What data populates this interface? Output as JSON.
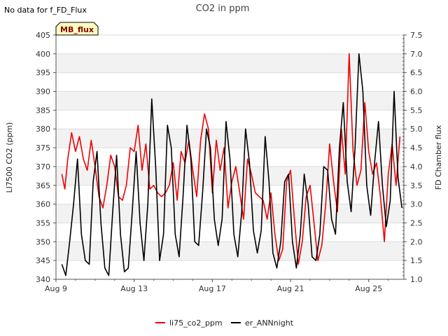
{
  "chart_data": {
    "type": "line",
    "title": "CO2 in ppm",
    "note": "No data for f_FD_Flux",
    "badge": "MB_flux",
    "xlabel": "",
    "ylabel": "LI7500 CO2 (ppm)",
    "y2label": "FD Chamber flux",
    "xlim": [
      9,
      26.8
    ],
    "ylim": [
      340,
      405
    ],
    "y2lim": [
      1.0,
      7.5
    ],
    "x_tick_values": [
      9,
      13,
      17,
      21,
      25
    ],
    "x_tick_labels": [
      "Aug 9",
      "Aug 13",
      "Aug 17",
      "Aug 21",
      "Aug 25"
    ],
    "y_ticks": [
      340,
      345,
      350,
      355,
      360,
      365,
      370,
      375,
      380,
      385,
      390,
      395,
      400,
      405
    ],
    "y2_ticks": [
      "1.0",
      "1.5",
      "2.0",
      "2.5",
      "3.0",
      "3.5",
      "4.0",
      "4.5",
      "5.0",
      "5.5",
      "6.0",
      "6.5",
      "7.0",
      "7.5"
    ],
    "legend": [
      {
        "name": "li75_co2_ppm",
        "color": "#ee0000"
      },
      {
        "name": "er_ANNnight",
        "color": "#000000"
      }
    ],
    "series": [
      {
        "name": "li75_co2_ppm",
        "color": "#ee0000",
        "x": [
          9.3,
          9.45,
          9.6,
          9.8,
          10.0,
          10.2,
          10.4,
          10.6,
          10.8,
          11.0,
          11.2,
          11.4,
          11.6,
          11.8,
          12.0,
          12.2,
          12.4,
          12.6,
          12.8,
          13.0,
          13.2,
          13.4,
          13.6,
          13.8,
          14.0,
          14.2,
          14.4,
          14.6,
          14.8,
          15.0,
          15.2,
          15.4,
          15.6,
          15.8,
          16.0,
          16.2,
          16.4,
          16.6,
          16.8,
          17.0,
          17.2,
          17.4,
          17.6,
          17.8,
          18.0,
          18.2,
          18.4,
          18.6,
          18.8,
          19.0,
          19.2,
          19.4,
          19.6,
          19.8,
          20.0,
          20.2,
          20.4,
          20.6,
          20.8,
          21.0,
          21.2,
          21.4,
          21.6,
          21.8,
          22.0,
          22.2,
          22.4,
          22.6,
          22.8,
          23.0,
          23.2,
          23.4,
          23.6,
          23.8,
          24.0,
          24.2,
          24.4,
          24.6,
          24.8,
          25.0,
          25.2,
          25.4,
          25.6,
          25.8,
          26.0,
          26.2,
          26.4,
          26.6
        ],
        "values": [
          368,
          364,
          372,
          379,
          374,
          378,
          372,
          369,
          377,
          370,
          362,
          359,
          365,
          373,
          370,
          362,
          361,
          365,
          375,
          374,
          381,
          369,
          376,
          364,
          365,
          363,
          362,
          363,
          365,
          371,
          361,
          374,
          371,
          377,
          369,
          362,
          377,
          384,
          380,
          363,
          377,
          369,
          375,
          359,
          366,
          370,
          363,
          356,
          372,
          368,
          363,
          362,
          361,
          356,
          363,
          352,
          345,
          348,
          366,
          369,
          356,
          344,
          350,
          362,
          365,
          355,
          345,
          349,
          360,
          376,
          366,
          358,
          380,
          368,
          400,
          374,
          365,
          369,
          387,
          374,
          368,
          371,
          362,
          350,
          368,
          376,
          365,
          378
        ]
      },
      {
        "name": "er_ANNnight",
        "color": "#000000",
        "x": [
          9.3,
          9.5,
          9.7,
          9.9,
          10.1,
          10.3,
          10.5,
          10.7,
          10.9,
          11.1,
          11.3,
          11.5,
          11.7,
          11.9,
          12.1,
          12.3,
          12.5,
          12.7,
          12.9,
          13.1,
          13.3,
          13.5,
          13.7,
          13.9,
          14.1,
          14.3,
          14.5,
          14.7,
          14.9,
          15.1,
          15.3,
          15.5,
          15.7,
          15.9,
          16.1,
          16.3,
          16.5,
          16.7,
          16.9,
          17.1,
          17.3,
          17.5,
          17.7,
          17.9,
          18.1,
          18.3,
          18.5,
          18.7,
          18.9,
          19.1,
          19.3,
          19.5,
          19.7,
          19.9,
          20.1,
          20.3,
          20.5,
          20.7,
          20.9,
          21.1,
          21.3,
          21.5,
          21.7,
          21.9,
          22.1,
          22.3,
          22.5,
          22.7,
          22.9,
          23.1,
          23.3,
          23.5,
          23.7,
          23.9,
          24.1,
          24.3,
          24.5,
          24.7,
          24.9,
          25.1,
          25.3,
          25.5,
          25.7,
          25.9,
          26.1,
          26.3,
          26.5,
          26.7
        ],
        "values": [
          344,
          341,
          350,
          360,
          372,
          352,
          345,
          344,
          366,
          374,
          355,
          343,
          341,
          358,
          373,
          352,
          342,
          343,
          358,
          374,
          355,
          345,
          360,
          388,
          370,
          345,
          352,
          381,
          375,
          352,
          346,
          362,
          381,
          372,
          350,
          349,
          363,
          380,
          375,
          356,
          349,
          356,
          382,
          372,
          352,
          346,
          358,
          380,
          371,
          353,
          347,
          353,
          378,
          366,
          347,
          343,
          350,
          366,
          368,
          350,
          343,
          352,
          368,
          360,
          346,
          345,
          352,
          370,
          369,
          356,
          352,
          375,
          387,
          366,
          358,
          375,
          400,
          390,
          365,
          357,
          371,
          382,
          365,
          354,
          361,
          390,
          367,
          359
        ]
      }
    ]
  }
}
